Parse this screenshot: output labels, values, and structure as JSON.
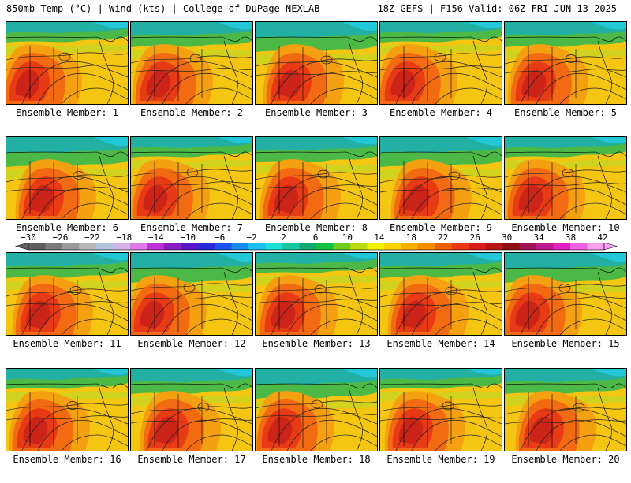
{
  "header": {
    "left": "850mb Temp (°C) | Wind (kts) | College of DuPage NEXLAB",
    "right": "18Z GEFS | F156 Valid: 06Z FRI JUN 13 2025"
  },
  "members": [
    "Ensemble Member: 1",
    "Ensemble Member: 2",
    "Ensemble Member: 3",
    "Ensemble Member: 4",
    "Ensemble Member: 5",
    "Ensemble Member: 6",
    "Ensemble Member: 7",
    "Ensemble Member: 8",
    "Ensemble Member: 9",
    "Ensemble Member: 10",
    "Ensemble Member: 11",
    "Ensemble Member: 12",
    "Ensemble Member: 13",
    "Ensemble Member: 14",
    "Ensemble Member: 15",
    "Ensemble Member: 16",
    "Ensemble Member: 17",
    "Ensemble Member: 18",
    "Ensemble Member: 19",
    "Ensemble Member: 20"
  ],
  "colorbar": {
    "labels": [
      "−30",
      "−26",
      "−22",
      "−18",
      "−14",
      "−10",
      "−6",
      "−2",
      "2",
      "6",
      "10",
      "14",
      "18",
      "22",
      "26",
      "30",
      "34",
      "38",
      "42"
    ],
    "colors": [
      "#5f5f5f",
      "#7b7b7b",
      "#9a9a9a",
      "#b8b8b8",
      "#b0c4de",
      "#d6b3e6",
      "#e07ae8",
      "#c032d8",
      "#8c1cc4",
      "#5a18c8",
      "#2a2ad8",
      "#1a52f0",
      "#1a8cf0",
      "#1ac0f0",
      "#1ae0d8",
      "#16c8a0",
      "#12a870",
      "#14c040",
      "#6ecc1c",
      "#b8dc10",
      "#f0f000",
      "#f8d400",
      "#f8b000",
      "#f88c00",
      "#f06000",
      "#e83a14",
      "#d81c1c",
      "#b81414",
      "#901010",
      "#a01454",
      "#c01890",
      "#e020c0",
      "#f060e0",
      "#f8a0f0"
    ],
    "temperature_colors": {
      "warm_core": "#cc2418",
      "hot": "#e83a14",
      "warm": "#f26b12",
      "mild": "#f5a010",
      "cool_warm": "#f4c612",
      "moderate": "#c8d420",
      "cool": "#4cb846",
      "cold": "#22b0a4",
      "colder": "#23c8d8"
    }
  }
}
